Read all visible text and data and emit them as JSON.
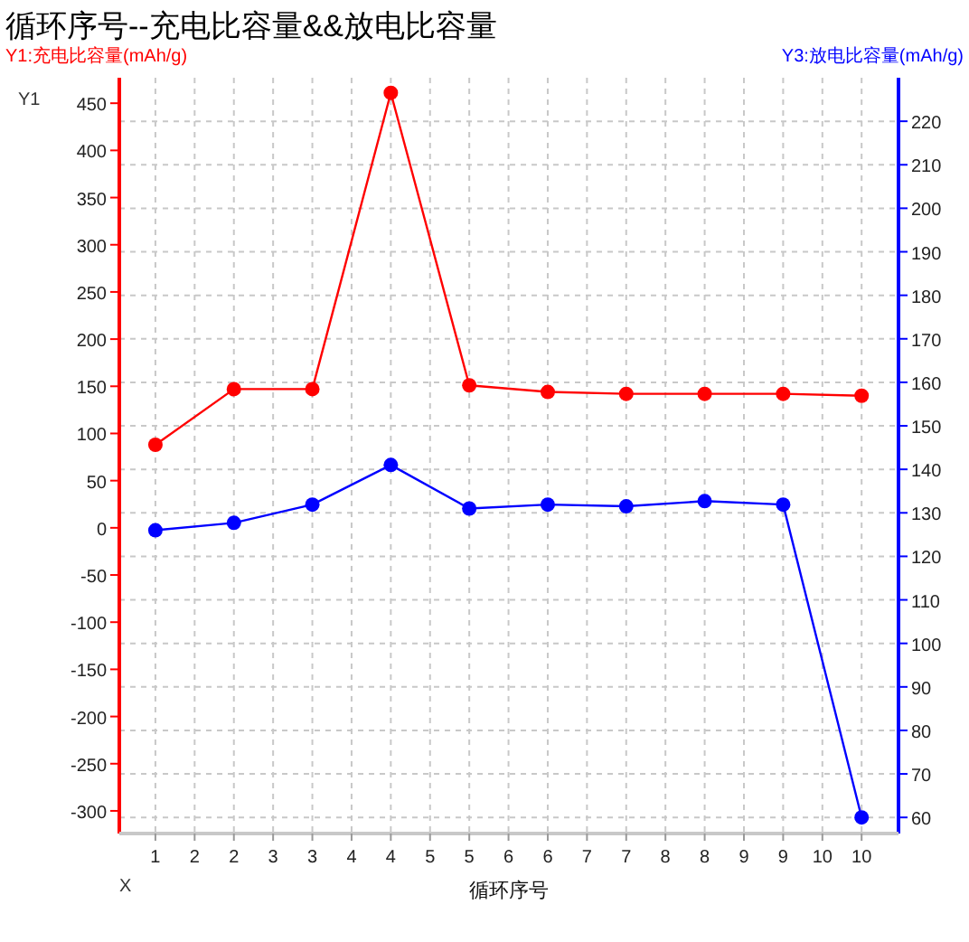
{
  "chart_data": {
    "type": "line",
    "title": "循环序号--充电比容量&&放电比容量",
    "xlabel": "循环序号",
    "ylabel": "Y1:充电比容量(mAh/g)",
    "y2label": "Y3:放电比容量(mAh/g)",
    "annotations": [
      "Y1",
      "X"
    ],
    "x": [
      1,
      2,
      3,
      4,
      5,
      6,
      7,
      8,
      9,
      10
    ],
    "xlim": [
      0.54,
      10.47
    ],
    "xticks": [
      1,
      {
        "value": 1.5,
        "label": "2"
      },
      2,
      {
        "value": 2.5,
        "label": "3"
      },
      3,
      {
        "value": 3.5,
        "label": "4"
      },
      4,
      {
        "value": 4.5,
        "label": "5"
      },
      5,
      {
        "value": 5.5,
        "label": "6"
      },
      6,
      {
        "value": 6.5,
        "label": "7"
      },
      7,
      {
        "value": 7.5,
        "label": "8"
      },
      8,
      {
        "value": 8.5,
        "label": "9"
      },
      9,
      {
        "value": 9.5,
        "label": "10"
      },
      10
    ],
    "ylim": [
      -324,
      477
    ],
    "yticks": [
      -300,
      -250,
      -200,
      -150,
      -100,
      -50,
      0,
      50,
      100,
      150,
      200,
      250,
      300,
      350,
      400,
      450
    ],
    "y2lim": [
      56.3,
      230
    ],
    "y2ticks": [
      60,
      70,
      80,
      90,
      100,
      110,
      120,
      130,
      140,
      150,
      160,
      170,
      180,
      190,
      200,
      210,
      220
    ],
    "grid": true,
    "marker": "circle",
    "series": [
      {
        "color": "#ff0000",
        "values": [
          88,
          147,
          147,
          461,
          151,
          144,
          142,
          142,
          142,
          140
        ]
      },
      {
        "color": "#0000ff",
        "axis": "y2",
        "values": [
          126,
          127.7,
          131.9,
          141,
          131,
          131.9,
          131.5,
          132.7,
          131.9,
          60
        ]
      }
    ]
  }
}
